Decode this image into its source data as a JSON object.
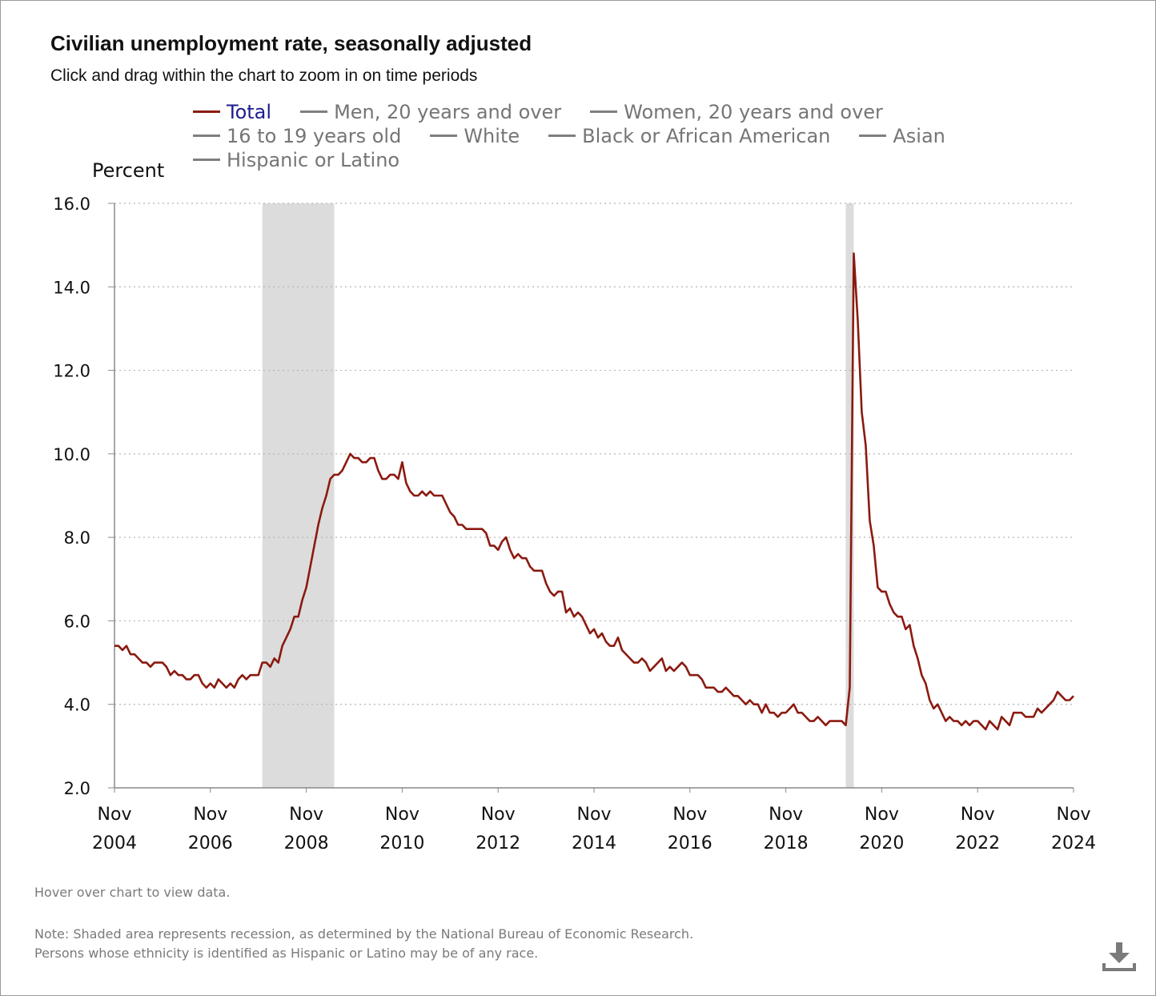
{
  "title": "Civilian unemployment rate, seasonally adjusted",
  "subtitle": "Click and drag within the chart to zoom in on time periods",
  "legend": {
    "rows": [
      [
        {
          "label": "Total",
          "active": true
        },
        {
          "label": "Men, 20 years and over",
          "active": false
        },
        {
          "label": "Women, 20 years and over",
          "active": false
        }
      ],
      [
        {
          "label": "16 to 19 years old",
          "active": false
        },
        {
          "label": "White",
          "active": false
        },
        {
          "label": "Black or African American",
          "active": false
        },
        {
          "label": "Asian",
          "active": false
        }
      ],
      [
        {
          "label": "Hispanic or Latino",
          "active": false
        }
      ]
    ]
  },
  "hover_note": "Hover over chart to view data.",
  "notes": [
    "Note: Shaded area represents recession, as determined by the National Bureau of Economic Research.",
    "Persons whose ethnicity is identified as Hispanic or Latino may be of any race."
  ],
  "download_icon": "download-icon",
  "colors": {
    "series": "#8b1a10",
    "recession": "#dcdcdc",
    "grid": "#b5b5b5",
    "active_legend": "#1d1d8f"
  },
  "chart_data": {
    "type": "line",
    "ylabel": "Percent",
    "ylim": [
      2.0,
      16.0
    ],
    "yticks": [
      "2.0",
      "4.0",
      "6.0",
      "8.0",
      "10.0",
      "12.0",
      "14.0",
      "16.0"
    ],
    "xticks": [
      {
        "month": "Nov",
        "year": "2004"
      },
      {
        "month": "Nov",
        "year": "2006"
      },
      {
        "month": "Nov",
        "year": "2008"
      },
      {
        "month": "Nov",
        "year": "2010"
      },
      {
        "month": "Nov",
        "year": "2012"
      },
      {
        "month": "Nov",
        "year": "2014"
      },
      {
        "month": "Nov",
        "year": "2016"
      },
      {
        "month": "Nov",
        "year": "2018"
      },
      {
        "month": "Nov",
        "year": "2020"
      },
      {
        "month": "Nov",
        "year": "2022"
      },
      {
        "month": "Nov",
        "year": "2024"
      }
    ],
    "xrange": [
      "2004-11",
      "2024-11"
    ],
    "grid": true,
    "recessions": [
      {
        "start": "2007-12",
        "end": "2009-06"
      },
      {
        "start": "2020-02",
        "end": "2020-04"
      }
    ],
    "series": [
      {
        "name": "Total",
        "start": "2004-11",
        "frequency": "monthly",
        "values": [
          5.4,
          5.4,
          5.3,
          5.4,
          5.2,
          5.2,
          5.1,
          5.0,
          5.0,
          4.9,
          5.0,
          5.0,
          5.0,
          4.9,
          4.7,
          4.8,
          4.7,
          4.7,
          4.6,
          4.6,
          4.7,
          4.7,
          4.5,
          4.4,
          4.5,
          4.4,
          4.6,
          4.5,
          4.4,
          4.5,
          4.4,
          4.6,
          4.7,
          4.6,
          4.7,
          4.7,
          4.7,
          5.0,
          5.0,
          4.9,
          5.1,
          5.0,
          5.4,
          5.6,
          5.8,
          6.1,
          6.1,
          6.5,
          6.8,
          7.3,
          7.8,
          8.3,
          8.7,
          9.0,
          9.4,
          9.5,
          9.5,
          9.6,
          9.8,
          10.0,
          9.9,
          9.9,
          9.8,
          9.8,
          9.9,
          9.9,
          9.6,
          9.4,
          9.4,
          9.5,
          9.5,
          9.4,
          9.8,
          9.3,
          9.1,
          9.0,
          9.0,
          9.1,
          9.0,
          9.1,
          9.0,
          9.0,
          9.0,
          8.8,
          8.6,
          8.5,
          8.3,
          8.3,
          8.2,
          8.2,
          8.2,
          8.2,
          8.2,
          8.1,
          7.8,
          7.8,
          7.7,
          7.9,
          8.0,
          7.7,
          7.5,
          7.6,
          7.5,
          7.5,
          7.3,
          7.2,
          7.2,
          7.2,
          6.9,
          6.7,
          6.6,
          6.7,
          6.7,
          6.2,
          6.3,
          6.1,
          6.2,
          6.1,
          5.9,
          5.7,
          5.8,
          5.6,
          5.7,
          5.5,
          5.4,
          5.4,
          5.6,
          5.3,
          5.2,
          5.1,
          5.0,
          5.0,
          5.1,
          5.0,
          4.8,
          4.9,
          5.0,
          5.1,
          4.8,
          4.9,
          4.8,
          4.9,
          5.0,
          4.9,
          4.7,
          4.7,
          4.7,
          4.6,
          4.4,
          4.4,
          4.4,
          4.3,
          4.3,
          4.4,
          4.3,
          4.2,
          4.2,
          4.1,
          4.0,
          4.1,
          4.0,
          4.0,
          3.8,
          4.0,
          3.8,
          3.8,
          3.7,
          3.8,
          3.8,
          3.9,
          4.0,
          3.8,
          3.8,
          3.7,
          3.6,
          3.6,
          3.7,
          3.6,
          3.5,
          3.6,
          3.6,
          3.6,
          3.6,
          3.5,
          4.4,
          14.8,
          13.2,
          11.0,
          10.2,
          8.4,
          7.8,
          6.8,
          6.7,
          6.7,
          6.4,
          6.2,
          6.1,
          6.1,
          5.8,
          5.9,
          5.4,
          5.1,
          4.7,
          4.5,
          4.1,
          3.9,
          4.0,
          3.8,
          3.6,
          3.7,
          3.6,
          3.6,
          3.5,
          3.6,
          3.5,
          3.6,
          3.6,
          3.5,
          3.4,
          3.6,
          3.5,
          3.4,
          3.7,
          3.6,
          3.5,
          3.8,
          3.8,
          3.8,
          3.7,
          3.7,
          3.7,
          3.9,
          3.8,
          3.9,
          4.0,
          4.1,
          4.3,
          4.2,
          4.1,
          4.1,
          4.2
        ]
      }
    ]
  }
}
